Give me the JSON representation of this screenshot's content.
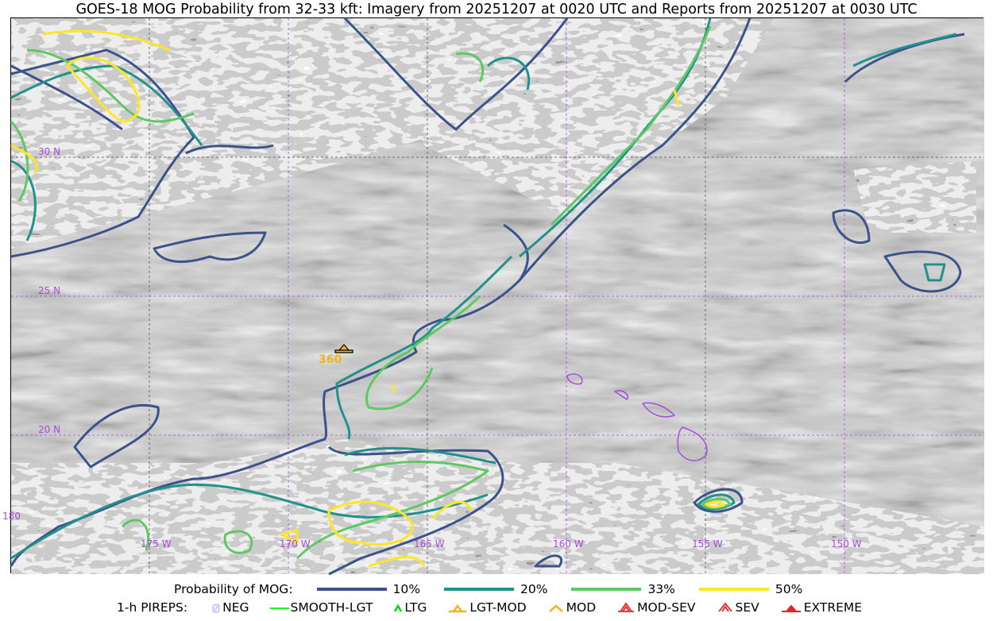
{
  "title": "GOES-18 MOG Probability from 32-33 kft: Imagery from 20251207 at 0020 UTC and Reports from 20251207 at 0030 UTC",
  "map": {
    "grid_color": "#a64dd9",
    "lon_labels": [
      "180",
      "175 W",
      "170 W",
      "165 W",
      "160 W",
      "155 W",
      "150 W"
    ],
    "lat_labels": [
      "30 N",
      "25 N",
      "20 N"
    ],
    "pirep_reports": [
      {
        "type": "LGT-MOD",
        "altitude_label": "360",
        "color": "#f5b21b"
      }
    ]
  },
  "legend": {
    "probability_title": "Probability of MOG:",
    "probability_levels": [
      {
        "label": "10%",
        "color": "#3b528b"
      },
      {
        "label": "20%",
        "color": "#21918c"
      },
      {
        "label": "33%",
        "color": "#5ec962"
      },
      {
        "label": "50%",
        "color": "#fde725"
      }
    ],
    "pireps_title": "1-h PIREPS:",
    "pireps": [
      {
        "label": "NEG",
        "icon": "neg-icon",
        "color": "#c8c8ff"
      },
      {
        "label": "SMOOTH-LGT",
        "icon": "smooth-lgt-icon",
        "color": "#22ee22"
      },
      {
        "label": "LTG",
        "icon": "ltg-icon",
        "color": "#00dd00"
      },
      {
        "label": "LGT-MOD",
        "icon": "lgt-mod-icon",
        "color": "#f5b21b"
      },
      {
        "label": "MOD",
        "icon": "mod-icon",
        "color": "#f5b21b"
      },
      {
        "label": "MOD-SEV",
        "icon": "mod-sev-icon",
        "color": "#ee2222"
      },
      {
        "label": "SEV",
        "icon": "sev-icon",
        "color": "#ee2222"
      },
      {
        "label": "EXTREME",
        "icon": "extreme-icon",
        "color": "#ee2222"
      }
    ]
  }
}
